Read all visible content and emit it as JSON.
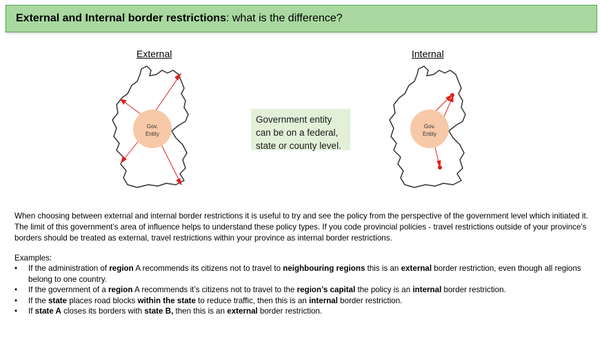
{
  "title": {
    "bold": "External and Internal border restrictions",
    "rest": ": what is the difference?"
  },
  "maps": {
    "external": {
      "label": "External",
      "entity_line1": "Gov.",
      "entity_line2": "Entity"
    },
    "internal": {
      "label": "Internal",
      "entity_line1": "Gov.",
      "entity_line2": "Entity"
    }
  },
  "note": "Government entity can be on a federal, state or county level.",
  "paragraph": "When choosing between external and internal border restrictions it is useful to try and see the policy from the perspective of the government level which initiated it. The limit of this government’s area of influence helps to understand these policy types. If you code provincial policies - travel restrictions outside of your province’s borders should be treated as external, travel restrictions within your province as internal border restrictions.",
  "examples_title": "Examples:",
  "bullet_char": "•",
  "examples": [
    [
      {
        "t": "If the administration of ",
        "b": false
      },
      {
        "t": "region",
        "b": true
      },
      {
        "t": " A recommends its citizens not to travel to ",
        "b": false
      },
      {
        "t": "neighbouring regions",
        "b": true
      },
      {
        "t": " this is an ",
        "b": false
      },
      {
        "t": "external",
        "b": true
      },
      {
        "t": " border restriction, even though all regions belong to one country.",
        "b": false
      }
    ],
    [
      {
        "t": "If the government of a ",
        "b": false
      },
      {
        "t": "region",
        "b": true
      },
      {
        "t": " A recommends it’s citizens not to travel to the ",
        "b": false
      },
      {
        "t": "region’s capital",
        "b": true
      },
      {
        "t": " the policy is an ",
        "b": false
      },
      {
        "t": "internal",
        "b": true
      },
      {
        "t": " border restriction.",
        "b": false
      }
    ],
    [
      {
        "t": "If the ",
        "b": false
      },
      {
        "t": "state",
        "b": true
      },
      {
        "t": " places road blocks ",
        "b": false
      },
      {
        "t": "within the state",
        "b": true
      },
      {
        "t": " to reduce traffic, then this is an ",
        "b": false
      },
      {
        "t": "internal",
        "b": true
      },
      {
        "t": " border restriction.",
        "b": false
      }
    ],
    [
      {
        "t": "If ",
        "b": false
      },
      {
        "t": "state A",
        "b": true
      },
      {
        "t": " closes its borders with ",
        "b": false
      },
      {
        "t": "state B,",
        "b": true
      },
      {
        "t": " then this is an ",
        "b": false
      },
      {
        "t": "external",
        "b": true
      },
      {
        "t": " border restriction.",
        "b": false
      }
    ]
  ],
  "colors": {
    "title_bg": "#a9d8a0",
    "title_border": "#5aa35a",
    "note_bg": "#e2f0d9",
    "entity_fill": "#f8c9a8",
    "arrow": "#e0201b"
  }
}
